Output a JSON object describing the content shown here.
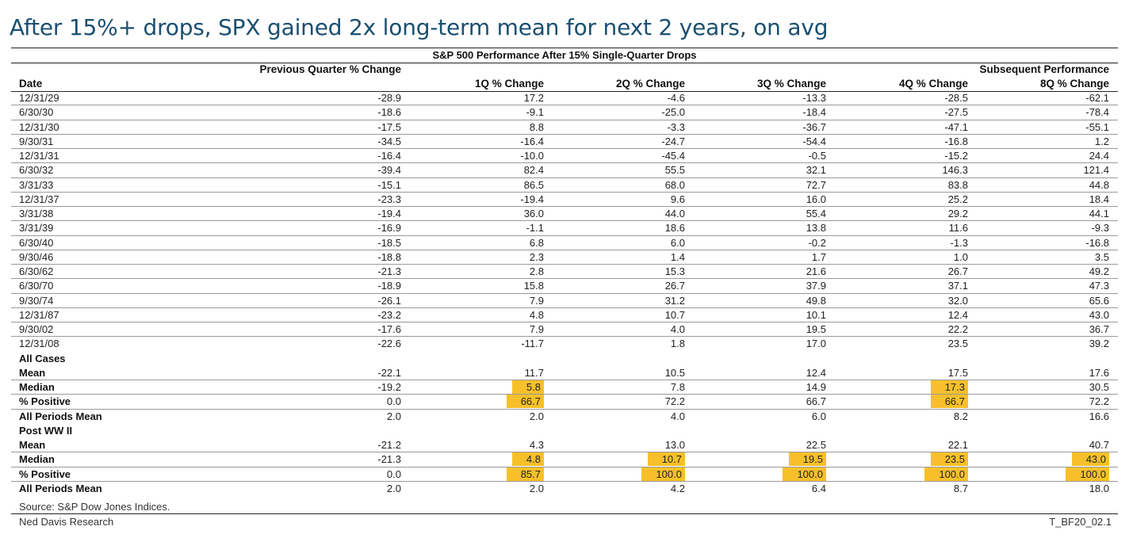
{
  "title": "After 15%+ drops, SPX gained 2x long-term mean for next 2 years, on avg",
  "chart_data": {
    "type": "table",
    "subtitle": "S&P 500 Performance After 15% Single-Quarter Drops",
    "group_headers": {
      "previous": "Previous Quarter % Change",
      "subsequent": "Subsequent Performance"
    },
    "columns": [
      "Date",
      "",
      "1Q % Change",
      "2Q % Change",
      "3Q % Change",
      "4Q % Change",
      "8Q % Change"
    ],
    "rows": [
      {
        "label": "12/31/29",
        "values": [
          "-28.9",
          "17.2",
          "-4.6",
          "-13.3",
          "-28.5",
          "-62.1"
        ]
      },
      {
        "label": "6/30/30",
        "values": [
          "-18.6",
          "-9.1",
          "-25.0",
          "-18.4",
          "-27.5",
          "-78.4"
        ]
      },
      {
        "label": "12/31/30",
        "values": [
          "-17.5",
          "8.8",
          "-3.3",
          "-36.7",
          "-47.1",
          "-55.1"
        ]
      },
      {
        "label": "9/30/31",
        "values": [
          "-34.5",
          "-16.4",
          "-24.7",
          "-54.4",
          "-16.8",
          "1.2"
        ]
      },
      {
        "label": "12/31/31",
        "values": [
          "-16.4",
          "-10.0",
          "-45.4",
          "-0.5",
          "-15.2",
          "24.4"
        ]
      },
      {
        "label": "6/30/32",
        "values": [
          "-39.4",
          "82.4",
          "55.5",
          "32.1",
          "146.3",
          "121.4"
        ]
      },
      {
        "label": "3/31/33",
        "values": [
          "-15.1",
          "86.5",
          "68.0",
          "72.7",
          "83.8",
          "44.8"
        ]
      },
      {
        "label": "12/31/37",
        "values": [
          "-23.3",
          "-19.4",
          "9.6",
          "16.0",
          "25.2",
          "18.4"
        ]
      },
      {
        "label": "3/31/38",
        "values": [
          "-19.4",
          "36.0",
          "44.0",
          "55.4",
          "29.2",
          "44.1"
        ]
      },
      {
        "label": "3/31/39",
        "values": [
          "-16.9",
          "-1.1",
          "18.6",
          "13.8",
          "11.6",
          "-9.3"
        ]
      },
      {
        "label": "6/30/40",
        "values": [
          "-18.5",
          "6.8",
          "6.0",
          "-0.2",
          "-1.3",
          "-16.8"
        ]
      },
      {
        "label": "9/30/46",
        "values": [
          "-18.8",
          "2.3",
          "1.4",
          "1.7",
          "1.0",
          "3.5"
        ]
      },
      {
        "label": "6/30/62",
        "values": [
          "-21.3",
          "2.8",
          "15.3",
          "21.6",
          "26.7",
          "49.2"
        ]
      },
      {
        "label": "6/30/70",
        "values": [
          "-18.9",
          "15.8",
          "26.7",
          "37.9",
          "37.1",
          "47.3"
        ]
      },
      {
        "label": "9/30/74",
        "values": [
          "-26.1",
          "7.9",
          "31.2",
          "49.8",
          "32.0",
          "65.6"
        ]
      },
      {
        "label": "12/31/87",
        "values": [
          "-23.2",
          "4.8",
          "10.7",
          "10.1",
          "12.4",
          "43.0"
        ]
      },
      {
        "label": "9/30/02",
        "values": [
          "-17.6",
          "7.9",
          "4.0",
          "19.5",
          "22.2",
          "36.7"
        ]
      },
      {
        "label": "12/31/08",
        "values": [
          "-22.6",
          "-11.7",
          "1.8",
          "17.0",
          "23.5",
          "39.2"
        ]
      },
      {
        "label": "All Cases",
        "section": true
      },
      {
        "label": "Mean",
        "bold": true,
        "values": [
          "-22.1",
          "11.7",
          "10.5",
          "12.4",
          "17.5",
          "17.6"
        ]
      },
      {
        "label": "Median",
        "bold": true,
        "values": [
          "-19.2",
          "5.8",
          "7.8",
          "14.9",
          "17.3",
          "30.5"
        ],
        "highlight": [
          1,
          4
        ]
      },
      {
        "label": "% Positive",
        "bold": true,
        "values": [
          "0.0",
          "66.7",
          "72.2",
          "66.7",
          "66.7",
          "72.2"
        ],
        "highlight": [
          1,
          4
        ]
      },
      {
        "label": "All Periods Mean",
        "bold": true,
        "values": [
          "2.0",
          "2.0",
          "4.0",
          "6.0",
          "8.2",
          "16.6"
        ]
      },
      {
        "label": "Post WW II",
        "section": true
      },
      {
        "label": "Mean",
        "bold": true,
        "values": [
          "-21.2",
          "4.3",
          "13.0",
          "22.5",
          "22.1",
          "40.7"
        ]
      },
      {
        "label": "Median",
        "bold": true,
        "values": [
          "-21.3",
          "4.8",
          "10.7",
          "19.5",
          "23.5",
          "43.0"
        ],
        "highlight": [
          1,
          2,
          3,
          4,
          5
        ]
      },
      {
        "label": "% Positive",
        "bold": true,
        "values": [
          "0.0",
          "85.7",
          "100.0",
          "100.0",
          "100.0",
          "100.0"
        ],
        "highlight": [
          1,
          2,
          3,
          4,
          5
        ]
      },
      {
        "label": "All Periods Mean",
        "bold": true,
        "values": [
          "2.0",
          "2.0",
          "4.2",
          "6.4",
          "8.7",
          "18.0"
        ]
      }
    ],
    "highlight_color": "#f7c02a"
  },
  "source": "Source: S&P Dow Jones Indices.",
  "footer_left": "Ned Davis Research",
  "footer_right": "T_BF20_02.1",
  "colors": {
    "title": "#1a4f72",
    "highlight": "#f7c02a"
  }
}
